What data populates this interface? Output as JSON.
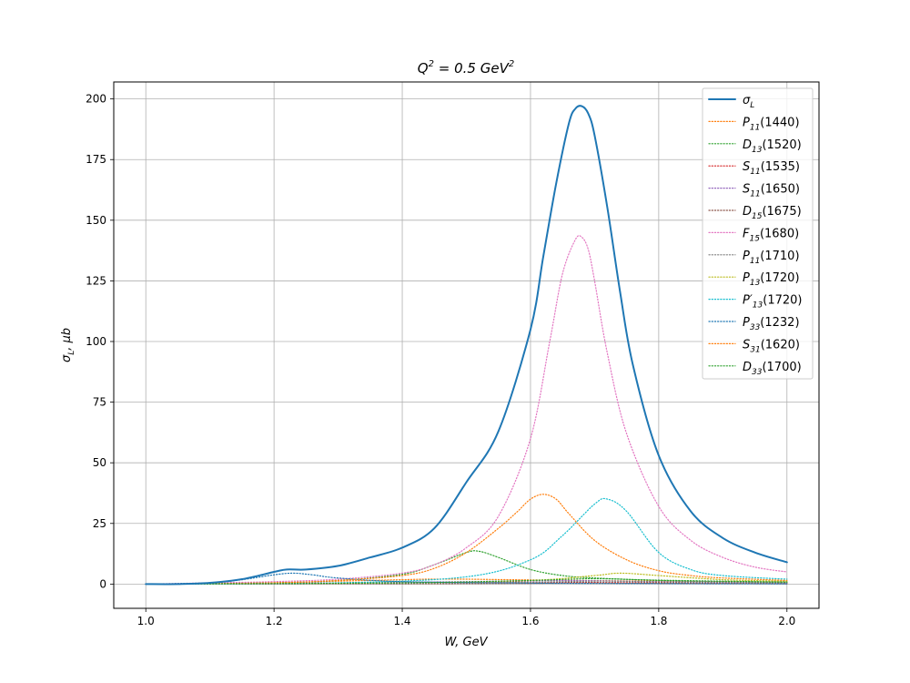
{
  "chart_data": {
    "type": "line",
    "title_base": "Q",
    "title_sup1": "2",
    "title_mid": " = 0.5 GeV",
    "title_sup2": "2",
    "xlabel": "W, GeV",
    "ylabel": "σ",
    "ylabel_sub": "L",
    "ylabel_tail": ", μb",
    "xlim": [
      0.95,
      2.05
    ],
    "ylim": [
      -10,
      207
    ],
    "xticks": [
      1.0,
      1.2,
      1.4,
      1.6,
      1.8,
      2.0
    ],
    "xtick_labels": [
      "1.0",
      "1.2",
      "1.4",
      "1.6",
      "1.8",
      "2.0"
    ],
    "yticks": [
      0,
      25,
      50,
      75,
      100,
      125,
      150,
      175,
      200
    ],
    "ytick_labels": [
      "0",
      "25",
      "50",
      "75",
      "100",
      "125",
      "150",
      "175",
      "200"
    ],
    "grid": true,
    "legend_placement": "top-right",
    "series": [
      {
        "sym": "σ",
        "sub": "L",
        "tail": "",
        "color": "#1f77b4",
        "style": "solid",
        "x": [
          1.0,
          1.05,
          1.1,
          1.15,
          1.2,
          1.22,
          1.25,
          1.3,
          1.35,
          1.4,
          1.45,
          1.5,
          1.55,
          1.6,
          1.62,
          1.64,
          1.66,
          1.67,
          1.68,
          1.69,
          1.7,
          1.72,
          1.74,
          1.76,
          1.8,
          1.85,
          1.9,
          1.95,
          2.0
        ],
        "y": [
          0,
          0,
          0.5,
          2,
          5,
          6,
          6,
          7.5,
          11,
          15,
          23,
          42,
          63,
          105,
          135,
          165,
          190,
          196,
          197,
          194,
          185,
          155,
          120,
          90,
          53,
          30,
          19,
          13,
          9
        ]
      },
      {
        "sym": "P",
        "sub": "11",
        "tail": "(1440)",
        "color": "#ff7f0e",
        "style": "dotted",
        "x": [
          1.0,
          1.1,
          1.2,
          1.3,
          1.4,
          1.44,
          1.5,
          1.6,
          1.7,
          1.8,
          1.9,
          2.0
        ],
        "y": [
          0,
          0.2,
          0.6,
          1.2,
          1.8,
          2,
          2,
          1.7,
          1.4,
          1.2,
          1,
          0.8
        ]
      },
      {
        "sym": "D",
        "sub": "13",
        "tail": "(1520)",
        "color": "#2ca02c",
        "style": "dotted",
        "x": [
          1.0,
          1.2,
          1.3,
          1.4,
          1.45,
          1.5,
          1.52,
          1.55,
          1.6,
          1.65,
          1.7,
          1.8,
          1.9,
          2.0
        ],
        "y": [
          0,
          0.5,
          1.5,
          4,
          8,
          13,
          13.5,
          11,
          6,
          3.5,
          2.5,
          1.5,
          1,
          0.8
        ]
      },
      {
        "sym": "S",
        "sub": "11",
        "tail": "(1535)",
        "color": "#d62728",
        "style": "dotted",
        "x": [
          1.0,
          1.2,
          1.4,
          1.53,
          1.6,
          1.8,
          2.0
        ],
        "y": [
          0,
          0.3,
          0.6,
          0.9,
          0.8,
          0.5,
          0.3
        ]
      },
      {
        "sym": "S",
        "sub": "11",
        "tail": "(1650)",
        "color": "#9467bd",
        "style": "dotted",
        "x": [
          1.0,
          1.3,
          1.5,
          1.65,
          1.8,
          2.0
        ],
        "y": [
          0,
          0.5,
          1,
          1.5,
          1,
          0.5
        ]
      },
      {
        "sym": "D",
        "sub": "15",
        "tail": "(1675)",
        "color": "#8c564b",
        "style": "dotted",
        "x": [
          1.0,
          1.4,
          1.6,
          1.675,
          1.8,
          2.0
        ],
        "y": [
          0,
          0.1,
          0.3,
          0.5,
          0.3,
          0.1
        ]
      },
      {
        "sym": "F",
        "sub": "15",
        "tail": "(1680)",
        "color": "#e377c2",
        "style": "dotted",
        "x": [
          1.0,
          1.1,
          1.2,
          1.3,
          1.4,
          1.45,
          1.5,
          1.55,
          1.6,
          1.63,
          1.65,
          1.67,
          1.68,
          1.69,
          1.7,
          1.72,
          1.75,
          1.8,
          1.85,
          1.9,
          1.95,
          2.0
        ],
        "y": [
          0,
          0.5,
          1,
          2,
          4.5,
          8,
          15,
          28,
          60,
          100,
          128,
          142,
          143,
          138,
          125,
          95,
          62,
          32,
          18,
          11,
          7,
          5
        ]
      },
      {
        "sym": "P",
        "sub": "11",
        "tail": "(1710)",
        "color": "#7f7f7f",
        "style": "dotted",
        "x": [
          1.0,
          1.4,
          1.6,
          1.71,
          1.8,
          2.0
        ],
        "y": [
          0,
          0.3,
          0.8,
          1.2,
          0.9,
          0.5
        ]
      },
      {
        "sym": "P",
        "sub": "13",
        "tail": "(1720)",
        "color": "#bcbd22",
        "style": "dotted",
        "x": [
          1.0,
          1.4,
          1.6,
          1.7,
          1.74,
          1.8,
          1.9,
          2.0
        ],
        "y": [
          0,
          0.5,
          1.5,
          3.5,
          4.5,
          3.5,
          1.8,
          1.2
        ]
      },
      {
        "sym": "P′",
        "sub": "13",
        "tail": "(1720)",
        "color": "#17becf",
        "style": "dotted",
        "x": [
          1.0,
          1.3,
          1.5,
          1.6,
          1.65,
          1.7,
          1.72,
          1.75,
          1.8,
          1.85,
          1.9,
          2.0
        ],
        "y": [
          0,
          0.5,
          3,
          10,
          20,
          33,
          35,
          30,
          13,
          6,
          3.5,
          2
        ]
      },
      {
        "sym": "P",
        "sub": "33",
        "tail": "(1232)",
        "color": "#1f77b4",
        "style": "dotted",
        "x": [
          1.0,
          1.1,
          1.15,
          1.2,
          1.23,
          1.26,
          1.3,
          1.4,
          1.6,
          1.8,
          2.0
        ],
        "y": [
          0,
          0.5,
          1.8,
          3.8,
          4.5,
          3.8,
          2.5,
          1,
          0.4,
          0.2,
          0.1
        ]
      },
      {
        "sym": "S",
        "sub": "31",
        "tail": "(1620)",
        "color": "#ff7f0e",
        "style": "dotted",
        "x": [
          1.0,
          1.2,
          1.3,
          1.4,
          1.45,
          1.5,
          1.55,
          1.58,
          1.6,
          1.62,
          1.64,
          1.66,
          1.7,
          1.75,
          1.8,
          1.85,
          1.9,
          2.0
        ],
        "y": [
          0,
          0.5,
          1.5,
          3.5,
          6.5,
          13,
          23,
          30,
          35,
          37,
          35,
          29,
          18,
          10,
          5.5,
          3.5,
          2.5,
          1.5
        ]
      },
      {
        "sym": "D",
        "sub": "33",
        "tail": "(1700)",
        "color": "#2ca02c",
        "style": "dotted",
        "x": [
          1.0,
          1.4,
          1.6,
          1.7,
          1.8,
          2.0
        ],
        "y": [
          0,
          0.5,
          1.5,
          2.2,
          1.6,
          0.8
        ]
      }
    ]
  }
}
